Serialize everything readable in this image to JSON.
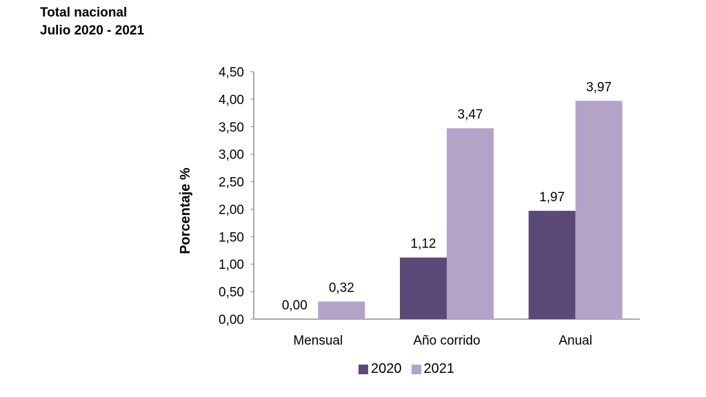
{
  "header": {
    "line1": "Total nacional",
    "line2": "Julio 2020 - 2021"
  },
  "chart_data": {
    "type": "bar",
    "title": "",
    "xlabel": "",
    "ylabel": "Porcentaje %",
    "categories": [
      "Mensual",
      "Año corrido",
      "Anual"
    ],
    "series": [
      {
        "name": "2020",
        "color": "#5b4a78",
        "values": [
          0.0,
          1.12,
          1.97
        ],
        "labels": [
          "0,00",
          "1,12",
          "1,97"
        ]
      },
      {
        "name": "2021",
        "color": "#b3a3c9",
        "values": [
          0.32,
          3.47,
          3.97
        ],
        "labels": [
          "0,32",
          "3,47",
          "3,97"
        ]
      }
    ],
    "ylim": [
      0,
      4.5
    ],
    "yticks": [
      "0,00",
      "0,50",
      "1,00",
      "1,50",
      "2,00",
      "2,50",
      "3,00",
      "3,50",
      "4,00",
      "4,50"
    ],
    "grid": false,
    "legend_position": "bottom"
  }
}
